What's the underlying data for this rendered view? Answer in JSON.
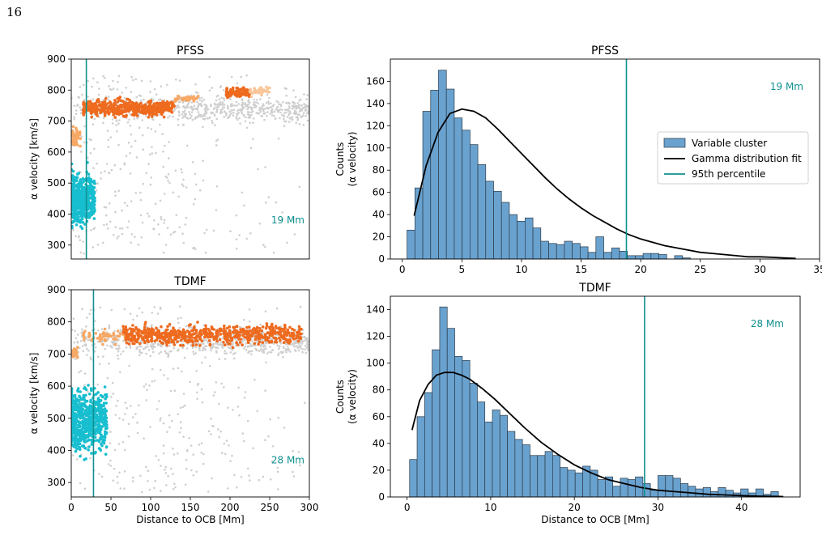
{
  "page_number": "16",
  "colors": {
    "background_points": "#cfcfcf",
    "orange_dark": "#ee6a1e",
    "orange_light": "#f7a865",
    "orange_pale": "#f9c69a",
    "cyan": "#17becf",
    "teal_line": "#10918f",
    "bar_fill": "#6aa2cf",
    "bar_edge": "#2a3a48",
    "fit_line": "#000000"
  },
  "chart_data": [
    {
      "id": "scatter-pfss",
      "type": "scatter",
      "title": "PFSS",
      "xlabel": "",
      "ylabel": "α velocity [km/s]",
      "xlim": [
        0,
        300
      ],
      "ylim": [
        255,
        900
      ],
      "xticks": [],
      "yticks": [
        300,
        400,
        500,
        600,
        700,
        800,
        900
      ],
      "vline_x": 19,
      "annotation": "19 Mm",
      "legend": "none",
      "grid": false,
      "clusters": [
        {
          "color_key": "background_points",
          "x_range": [
            0,
            300
          ],
          "y_range": [
            270,
            850
          ],
          "count": 900,
          "shape": "diffuse"
        },
        {
          "color_key": "cyan",
          "x_range": [
            0,
            30
          ],
          "y_range": [
            330,
            570
          ],
          "count": 500,
          "shape": "block"
        },
        {
          "color_key": "orange_light",
          "x_range": [
            1,
            12
          ],
          "y_range": [
            590,
            700
          ],
          "count": 50,
          "shape": "block"
        },
        {
          "color_key": "orange_dark",
          "x_range": [
            15,
            130
          ],
          "y_range": [
            700,
            785
          ],
          "count": 500,
          "shape": "band"
        },
        {
          "color_key": "orange_light",
          "x_range": [
            130,
            160
          ],
          "y_range": [
            755,
            790
          ],
          "count": 40,
          "shape": "band"
        },
        {
          "color_key": "orange_dark",
          "x_range": [
            195,
            225
          ],
          "y_range": [
            770,
            815
          ],
          "count": 100,
          "shape": "block"
        },
        {
          "color_key": "orange_pale",
          "x_range": [
            225,
            250
          ],
          "y_range": [
            775,
            820
          ],
          "count": 40,
          "shape": "block"
        }
      ]
    },
    {
      "id": "scatter-tdmf",
      "type": "scatter",
      "title": "TDMF",
      "xlabel": "Distance to OCB [Mm]",
      "ylabel": "α velocity [km/s]",
      "xlim": [
        0,
        300
      ],
      "ylim": [
        255,
        900
      ],
      "xticks": [
        0,
        50,
        100,
        150,
        200,
        250,
        300
      ],
      "yticks": [
        300,
        400,
        500,
        600,
        700,
        800,
        900
      ],
      "vline_x": 28,
      "annotation": "28 Mm",
      "legend": "none",
      "grid": false,
      "clusters": [
        {
          "color_key": "background_points",
          "x_range": [
            0,
            300
          ],
          "y_range": [
            270,
            850
          ],
          "count": 1000,
          "shape": "diffuse"
        },
        {
          "color_key": "cyan",
          "x_range": [
            0,
            45
          ],
          "y_range": [
            350,
            640
          ],
          "count": 650,
          "shape": "block"
        },
        {
          "color_key": "orange_light",
          "x_range": [
            1,
            8
          ],
          "y_range": [
            680,
            730
          ],
          "count": 30,
          "shape": "block"
        },
        {
          "color_key": "orange_light",
          "x_range": [
            15,
            70
          ],
          "y_range": [
            715,
            790
          ],
          "count": 60,
          "shape": "band"
        },
        {
          "color_key": "orange_dark",
          "x_range": [
            65,
            290
          ],
          "y_range": [
            710,
            810
          ],
          "count": 650,
          "shape": "band"
        }
      ]
    },
    {
      "id": "hist-pfss",
      "type": "bar",
      "title": "PFSS",
      "xlabel": "",
      "ylabel_lines": [
        "Counts",
        "(α velocity)"
      ],
      "xlim": [
        -1,
        35
      ],
      "ylim": [
        0,
        180
      ],
      "xticks": [
        0,
        5,
        10,
        15,
        20,
        25,
        30,
        35
      ],
      "yticks": [
        0,
        20,
        40,
        60,
        80,
        100,
        120,
        140,
        160
      ],
      "bin_start": 0.4,
      "bin_width": 0.66,
      "values": [
        26,
        64,
        133,
        152,
        170,
        153,
        127,
        116,
        103,
        85,
        70,
        61,
        51,
        40,
        34,
        37,
        28,
        16,
        14,
        13,
        16,
        14,
        11,
        6,
        20,
        6,
        10,
        7,
        3,
        3,
        5,
        5,
        4,
        0,
        3,
        1
      ],
      "vline_x": 18.8,
      "annotation": "19 Mm",
      "fit_x": [
        1,
        2,
        3,
        4,
        5,
        6,
        7,
        8,
        9,
        10,
        11,
        12,
        13,
        14,
        15,
        16,
        17,
        18,
        19,
        20,
        21,
        22,
        23,
        24,
        25,
        26,
        27,
        28,
        29,
        30,
        31,
        32,
        33
      ],
      "fit_y": [
        39,
        84,
        114,
        131,
        135,
        133,
        127,
        117,
        106,
        95,
        84,
        73,
        63,
        54,
        46,
        39,
        33,
        27,
        22,
        18,
        15,
        12,
        10,
        8,
        6,
        5,
        4,
        3,
        2,
        2,
        1.5,
        1,
        0.5
      ],
      "legend": {
        "placement": "right",
        "entries": [
          "Variable cluster",
          "Gamma distribution fit",
          "95th percentile"
        ]
      },
      "grid": false
    },
    {
      "id": "hist-tdmf",
      "type": "bar",
      "title": "TDMF",
      "xlabel": "Distance to OCB [Mm]",
      "ylabel_lines": [
        "Counts",
        "(α velocity)"
      ],
      "xlim": [
        -2,
        47
      ],
      "ylim": [
        0,
        150
      ],
      "xticks": [
        0,
        10,
        20,
        30,
        40
      ],
      "yticks": [
        0,
        20,
        40,
        60,
        80,
        100,
        120,
        140
      ],
      "bin_start": 0.3,
      "bin_width": 0.9,
      "values": [
        28,
        60,
        78,
        110,
        142,
        126,
        105,
        102,
        85,
        71,
        56,
        65,
        61,
        49,
        43,
        39,
        31,
        31,
        34,
        31,
        22,
        20,
        18,
        23,
        20,
        13,
        15,
        8,
        14,
        13,
        15,
        10,
        5,
        16,
        16,
        14,
        10,
        8,
        6,
        7,
        4,
        7,
        5,
        3,
        6,
        3,
        6,
        2,
        4
      ],
      "vline_x": 28.4,
      "annotation": "28 Mm",
      "fit_x": [
        0.6,
        1.5,
        2.5,
        3.5,
        4.5,
        5.5,
        6.5,
        7.5,
        9,
        10.5,
        12,
        14,
        16,
        18,
        20,
        22,
        24,
        26,
        28,
        30,
        32,
        34,
        36,
        38,
        40,
        42,
        44,
        45
      ],
      "fit_y": [
        50,
        72,
        84,
        91,
        93,
        93,
        91,
        88,
        81,
        73,
        64,
        52,
        41,
        32,
        24,
        18,
        13,
        10,
        7,
        5,
        4,
        3,
        2,
        1.5,
        1,
        0.6,
        0.4,
        0.3
      ],
      "legend": "none",
      "grid": false
    }
  ]
}
